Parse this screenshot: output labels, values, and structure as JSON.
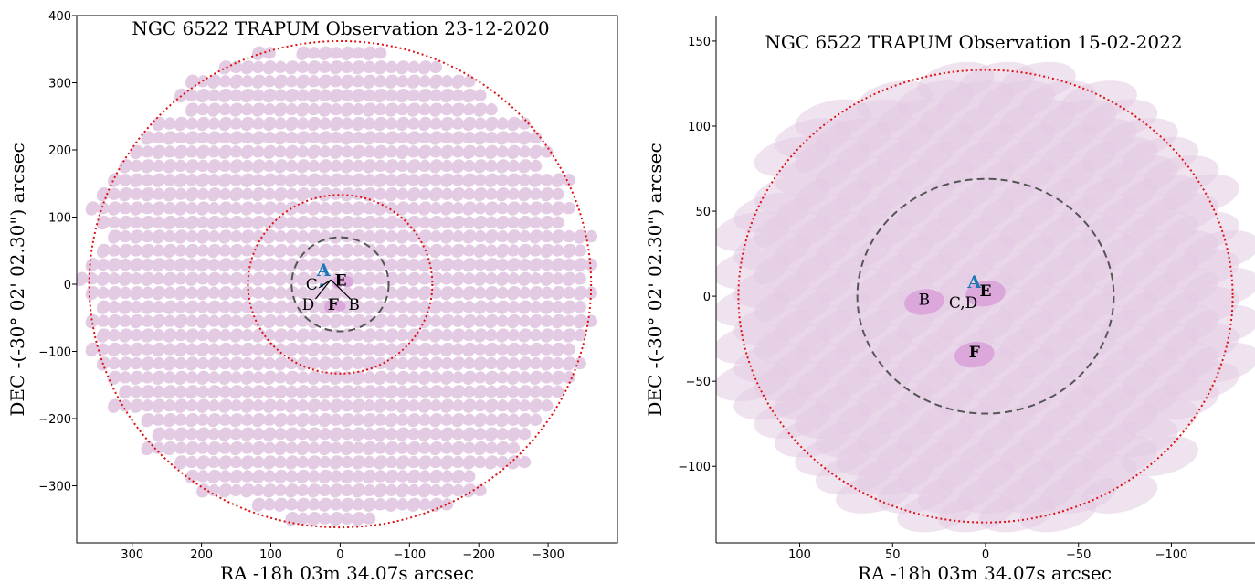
{
  "colors": {
    "beam_fill": "#e3cce3",
    "beam_hilite": "#dca8dc",
    "dotted_circle": "#dd1111",
    "dashed_circle": "#555555",
    "pulsar_a": "#1f77b4"
  },
  "chart_data": [
    {
      "type": "scatter",
      "title": "NGC 6522 TRAPUM Observation 23-12-2020",
      "xlabel": "RA -18h 03m 34.07s arcsec",
      "ylabel": "DEC -(-30° 02' 02.30\") arcsec",
      "x_inverted": true,
      "xlim": [
        380,
        -400
      ],
      "ylim": [
        -385,
        400
      ],
      "xticks": [
        300,
        200,
        100,
        0,
        -100,
        -200,
        -300
      ],
      "xtick_labels": [
        "300",
        "200",
        "100",
        "0",
        "−100",
        "−200",
        "−300"
      ],
      "yticks": [
        400,
        300,
        200,
        100,
        0,
        -100,
        -200,
        -300
      ],
      "ytick_labels": [
        "400",
        "300",
        "200",
        "100",
        "0",
        "−100",
        "−200",
        "−300"
      ],
      "circles": [
        {
          "kind": "dotted",
          "radius": 362
        },
        {
          "kind": "dotted",
          "radius": 133
        },
        {
          "kind": "dashed",
          "radius": 70
        }
      ],
      "beam_tiling": {
        "shape": "bean",
        "extent_radius": 370,
        "spacing_x": 32,
        "spacing_y": 21
      },
      "pulsars": [
        {
          "label": "A",
          "x": 24,
          "y": 12,
          "style": "blue"
        },
        {
          "label": "C",
          "x": 41,
          "y": -8,
          "style": "normal"
        },
        {
          "label": "E",
          "x": -1,
          "y": -2,
          "style": "bold"
        },
        {
          "label": "D",
          "x": 46,
          "y": -38,
          "style": "normal"
        },
        {
          "label": "F",
          "x": 10,
          "y": -38,
          "style": "bold"
        },
        {
          "label": "B",
          "x": -20,
          "y": -38,
          "style": "normal"
        }
      ]
    },
    {
      "type": "scatter",
      "title": "NGC 6522 TRAPUM Observation 15-02-2022",
      "xlabel": "RA -18h 03m 34.07s arcsec",
      "ylabel": "DEC -(-30° 02' 02.30\") arcsec",
      "x_inverted": true,
      "xlim": [
        145,
        -145
      ],
      "ylim": [
        -145,
        165
      ],
      "xticks": [
        100,
        50,
        0,
        -50,
        -100
      ],
      "xtick_labels": [
        "100",
        "50",
        "0",
        "−50",
        "−100"
      ],
      "yticks": [
        150,
        100,
        50,
        0,
        -50,
        -100
      ],
      "ytick_labels": [
        "150",
        "100",
        "50",
        "0",
        "−50",
        "−100"
      ],
      "circles": [
        {
          "kind": "dotted",
          "radius": 133
        },
        {
          "kind": "dashed",
          "radius": 69
        }
      ],
      "beam_tiling": {
        "shape": "ellipse",
        "extent_radius": 138,
        "spacing_x": 22,
        "spacing_y": 11
      },
      "pulsars": [
        {
          "label": "A",
          "x": 6,
          "y": 5,
          "style": "blue"
        },
        {
          "label": "B",
          "x": 33,
          "y": -5,
          "style": "normal"
        },
        {
          "label": "C,D",
          "x": 12,
          "y": -7,
          "style": "normal"
        },
        {
          "label": "E",
          "x": 0,
          "y": 0,
          "style": "bold"
        },
        {
          "label": "F",
          "x": 6,
          "y": -36,
          "style": "bold"
        }
      ]
    }
  ]
}
